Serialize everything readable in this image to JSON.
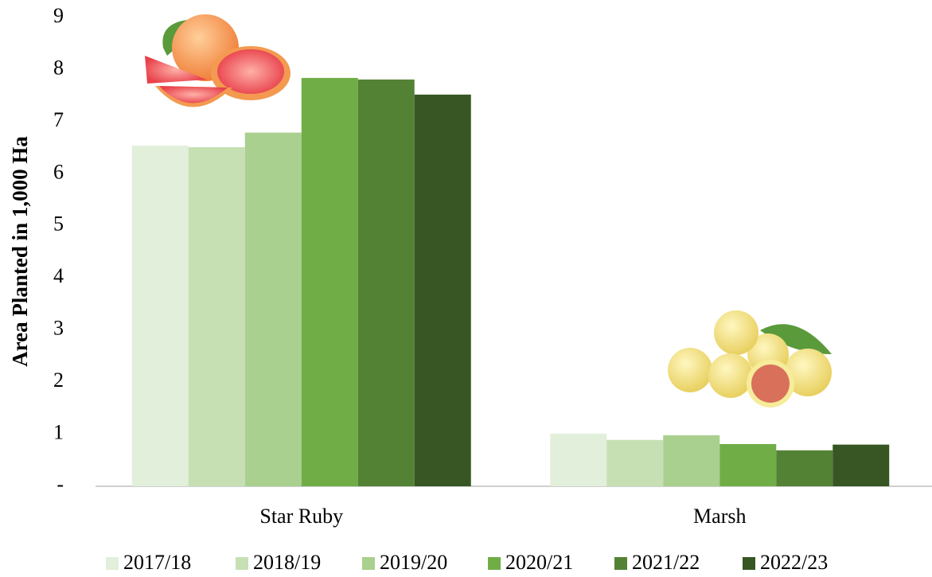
{
  "chart_data": {
    "type": "bar",
    "y_label": "Area Planted in 1,000 Ha",
    "categories": [
      "Star Ruby",
      "Marsh"
    ],
    "series": [
      {
        "name": "2017/18",
        "color": "#e2efda",
        "values": [
          6.54,
          1.01
        ]
      },
      {
        "name": "2018/19",
        "color": "#c6e0b4",
        "values": [
          6.51,
          0.89
        ]
      },
      {
        "name": "2019/20",
        "color": "#a9d08e",
        "values": [
          6.79,
          0.98
        ]
      },
      {
        "name": "2020/21",
        "color": "#70ad47",
        "values": [
          7.84,
          0.81
        ]
      },
      {
        "name": "2021/22",
        "color": "#548235",
        "values": [
          7.81,
          0.69
        ]
      },
      {
        "name": "2022/23",
        "color": "#375623",
        "values": [
          7.52,
          0.8
        ]
      }
    ],
    "ylim": [
      0,
      9
    ],
    "yticks": [
      {
        "value": 0,
        "label": "-"
      },
      1,
      2,
      3,
      4,
      5,
      6,
      7,
      8,
      9
    ],
    "grid": false,
    "legend": "bottom"
  }
}
